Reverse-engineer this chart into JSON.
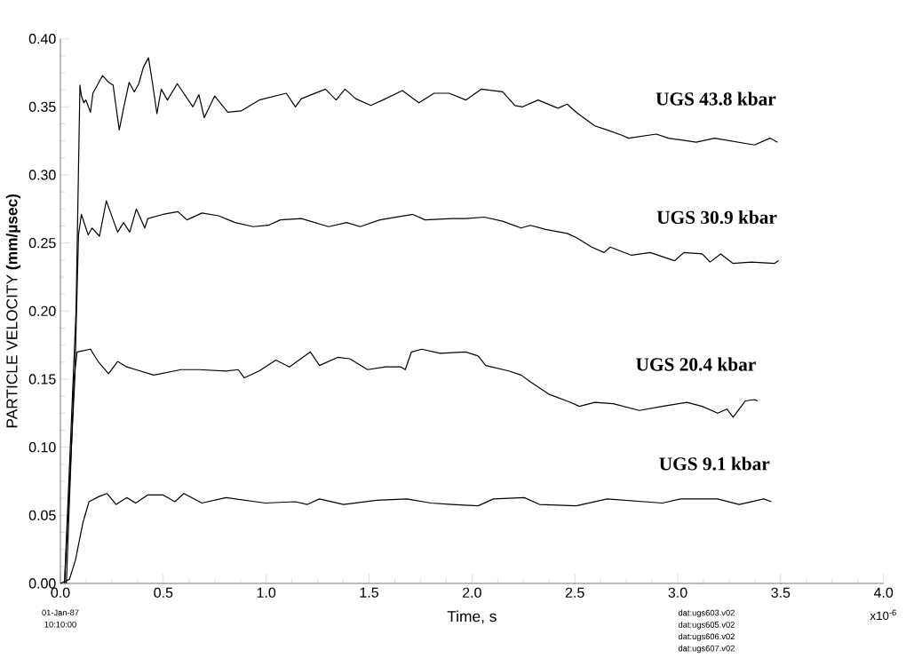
{
  "chart_data": {
    "type": "line",
    "xlabel": "Time, s",
    "ylabel": "PARTICLE VELOCITY **(mm/µsec)**",
    "xlim": [
      0,
      4.0
    ],
    "ylim": [
      0,
      0.4
    ],
    "xticks": [
      {
        "value": 0,
        "label": "0.0"
      },
      0.5,
      {
        "value": 1.0,
        "label": "1.0"
      },
      1.5,
      {
        "value": 2.0,
        "label": "2.0"
      },
      2.5,
      {
        "value": 3.0,
        "label": "3.0"
      },
      3.5,
      {
        "value": 4.0,
        "label": "4.0"
      }
    ],
    "yticks": [
      {
        "value": 0,
        "label": "0.00"
      },
      0.05,
      {
        "value": 0.1,
        "label": "0.10"
      },
      0.15,
      {
        "value": 0.2,
        "label": "0.20"
      },
      0.25,
      {
        "value": 0.3,
        "label": "0.30"
      },
      0.35,
      {
        "value": 0.4,
        "label": "0.40"
      }
    ],
    "grid": false,
    "legend": false,
    "line_style": "solid",
    "annotations": [
      "01-Jan-87",
      "10:10:00",
      "dat:ugs603.v02",
      "dat:ugs605.v02",
      "dat:ugs606.v02",
      "dat:ugs607.v02",
      "x10$^{-6}$"
    ],
    "series": [
      {
        "name": "UGS  43.8 kbar",
        "color": "#000000",
        "x": [
          0.02,
          0.076,
          0.095,
          0.102,
          0.114,
          0.124,
          0.146,
          0.158,
          0.205,
          0.234,
          0.256,
          0.286,
          0.307,
          0.334,
          0.359,
          0.381,
          0.403,
          0.428,
          0.447,
          0.469,
          0.49,
          0.52,
          0.568,
          0.644,
          0.673,
          0.699,
          0.75,
          0.813,
          0.878,
          0.966,
          1.098,
          1.142,
          1.171,
          1.288,
          1.34,
          1.383,
          1.435,
          1.508,
          1.567,
          1.662,
          1.742,
          1.816,
          1.889,
          1.97,
          2.045,
          2.149,
          2.209,
          2.246,
          2.321,
          2.418,
          2.463,
          2.507,
          2.597,
          2.657,
          2.731,
          2.761,
          2.896,
          2.955,
          3.09,
          3.179,
          3.373,
          3.448,
          3.485
        ],
        "values": [
          0,
          0.2,
          0.366,
          0.358,
          0.353,
          0.355,
          0.346,
          0.36,
          0.373,
          0.368,
          0.366,
          0.333,
          0.349,
          0.368,
          0.361,
          0.367,
          0.379,
          0.386,
          0.368,
          0.345,
          0.363,
          0.355,
          0.367,
          0.35,
          0.359,
          0.342,
          0.358,
          0.346,
          0.347,
          0.355,
          0.36,
          0.35,
          0.356,
          0.363,
          0.355,
          0.363,
          0.356,
          0.351,
          0.355,
          0.362,
          0.353,
          0.36,
          0.36,
          0.355,
          0.363,
          0.361,
          0.351,
          0.35,
          0.355,
          0.349,
          0.352,
          0.346,
          0.336,
          0.333,
          0.329,
          0.327,
          0.33,
          0.327,
          0.324,
          0.327,
          0.322,
          0.327,
          0.324
        ]
      },
      {
        "name": "UGS  30.9 kbar",
        "color": "#000000",
        "x": [
          0.02,
          0.07,
          0.088,
          0.102,
          0.135,
          0.154,
          0.19,
          0.223,
          0.278,
          0.307,
          0.337,
          0.369,
          0.41,
          0.425,
          0.498,
          0.571,
          0.615,
          0.688,
          0.769,
          0.849,
          0.937,
          1.01,
          1.069,
          1.171,
          1.303,
          1.391,
          1.457,
          1.552,
          1.713,
          1.772,
          1.903,
          1.97,
          2.06,
          2.149,
          2.239,
          2.284,
          2.358,
          2.463,
          2.507,
          2.582,
          2.642,
          2.672,
          2.776,
          2.866,
          2.985,
          3.03,
          3.119,
          3.157,
          3.209,
          3.269,
          3.358,
          3.47,
          3.49
        ],
        "values": [
          0,
          0.15,
          0.256,
          0.271,
          0.256,
          0.261,
          0.255,
          0.281,
          0.258,
          0.265,
          0.258,
          0.275,
          0.261,
          0.268,
          0.271,
          0.273,
          0.267,
          0.272,
          0.27,
          0.265,
          0.262,
          0.263,
          0.267,
          0.268,
          0.262,
          0.265,
          0.262,
          0.267,
          0.271,
          0.267,
          0.268,
          0.268,
          0.269,
          0.266,
          0.261,
          0.263,
          0.26,
          0.257,
          0.254,
          0.247,
          0.243,
          0.247,
          0.241,
          0.243,
          0.237,
          0.243,
          0.242,
          0.236,
          0.242,
          0.235,
          0.236,
          0.235,
          0.237
        ]
      },
      {
        "name": "UGS  20.4 kbar",
        "color": "#000000",
        "x": [
          0.029,
          0.066,
          0.081,
          0.146,
          0.183,
          0.234,
          0.278,
          0.322,
          0.366,
          0.454,
          0.586,
          0.673,
          0.805,
          0.864,
          0.893,
          0.966,
          1.047,
          1.113,
          1.215,
          1.259,
          1.347,
          1.406,
          1.493,
          1.581,
          1.654,
          1.676,
          1.706,
          1.757,
          1.845,
          1.97,
          2.03,
          2.067,
          2.179,
          2.239,
          2.284,
          2.373,
          2.478,
          2.522,
          2.597,
          2.687,
          2.813,
          2.925,
          3.045,
          3.119,
          3.194,
          3.239,
          3.269,
          3.328,
          3.373,
          3.388
        ],
        "values": [
          0,
          0.15,
          0.17,
          0.172,
          0.163,
          0.154,
          0.163,
          0.159,
          0.157,
          0.153,
          0.157,
          0.157,
          0.156,
          0.157,
          0.151,
          0.156,
          0.164,
          0.159,
          0.17,
          0.16,
          0.166,
          0.165,
          0.157,
          0.159,
          0.159,
          0.157,
          0.17,
          0.172,
          0.169,
          0.17,
          0.167,
          0.16,
          0.156,
          0.153,
          0.148,
          0.139,
          0.133,
          0.13,
          0.133,
          0.132,
          0.127,
          0.13,
          0.133,
          0.13,
          0.125,
          0.128,
          0.122,
          0.134,
          0.135,
          0.134
        ]
      },
      {
        "name": "UGS  9.1 kbar",
        "color": "#000000",
        "x": [
          0,
          0.044,
          0.073,
          0.11,
          0.139,
          0.19,
          0.227,
          0.271,
          0.322,
          0.366,
          0.425,
          0.498,
          0.556,
          0.6,
          0.688,
          0.805,
          0.996,
          1.142,
          1.2,
          1.259,
          1.376,
          1.537,
          1.684,
          1.801,
          1.903,
          2.03,
          2.104,
          2.254,
          2.328,
          2.507,
          2.657,
          2.925,
          3.015,
          3.194,
          3.299,
          3.418,
          3.455
        ],
        "values": [
          0,
          0.003,
          0.017,
          0.045,
          0.06,
          0.064,
          0.066,
          0.058,
          0.063,
          0.059,
          0.065,
          0.065,
          0.06,
          0.066,
          0.059,
          0.063,
          0.059,
          0.06,
          0.058,
          0.062,
          0.058,
          0.061,
          0.062,
          0.059,
          0.058,
          0.057,
          0.062,
          0.063,
          0.058,
          0.057,
          0.062,
          0.059,
          0.062,
          0.062,
          0.058,
          0.062,
          0.06
        ]
      }
    ]
  }
}
